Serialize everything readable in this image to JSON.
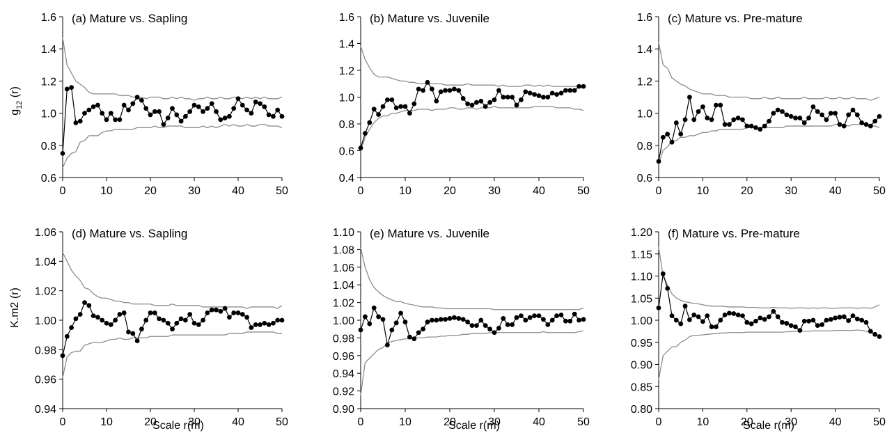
{
  "figure": {
    "ylabel_top_main": "g",
    "ylabel_top_sub": "12",
    "ylabel_top_suffix": " (r)",
    "ylabel_bottom": "K.m2 (r)",
    "xlabel_bottom": "Scale r(m)"
  },
  "chart_data": [
    {
      "type": "line",
      "title": "(a) Mature vs. Sapling",
      "ylim": [
        0.6,
        1.6
      ],
      "yticks": [
        "0.6",
        "0.8",
        "1.0",
        "1.2",
        "1.4",
        "1.6"
      ],
      "xlim": [
        0,
        50
      ],
      "xticks": [
        "0",
        "10",
        "20",
        "30",
        "40",
        "50"
      ],
      "observed": [
        0.75,
        1.15,
        1.16,
        0.94,
        0.95,
        1.0,
        1.02,
        1.04,
        1.05,
        1.0,
        0.96,
        1.0,
        0.96,
        0.96,
        1.05,
        1.02,
        1.06,
        1.1,
        1.08,
        1.03,
        0.99,
        1.01,
        1.01,
        0.93,
        0.97,
        1.03,
        0.99,
        0.95,
        0.98,
        1.01,
        1.05,
        1.04,
        1.01,
        1.03,
        1.06,
        1.01,
        0.96,
        0.97,
        0.98,
        1.03,
        1.09,
        1.05,
        1.02,
        1.0,
        1.07,
        1.06,
        1.04,
        0.99,
        0.98,
        1.02,
        0.98
      ],
      "upper": [
        1.47,
        1.3,
        1.25,
        1.2,
        1.18,
        1.16,
        1.13,
        1.12,
        1.12,
        1.12,
        1.12,
        1.12,
        1.12,
        1.11,
        1.11,
        1.11,
        1.1,
        1.1,
        1.1,
        1.09,
        1.1,
        1.1,
        1.1,
        1.09,
        1.09,
        1.1,
        1.09,
        1.1,
        1.09,
        1.09,
        1.08,
        1.09,
        1.09,
        1.1,
        1.09,
        1.09,
        1.1,
        1.09,
        1.09,
        1.1,
        1.1,
        1.09,
        1.1,
        1.09,
        1.1,
        1.09,
        1.1,
        1.09,
        1.09,
        1.09,
        1.1
      ],
      "lower": [
        0.66,
        0.72,
        0.75,
        0.76,
        0.82,
        0.83,
        0.86,
        0.86,
        0.86,
        0.88,
        0.89,
        0.89,
        0.9,
        0.9,
        0.9,
        0.9,
        0.9,
        0.91,
        0.91,
        0.91,
        0.91,
        0.92,
        0.91,
        0.91,
        0.92,
        0.92,
        0.92,
        0.92,
        0.91,
        0.91,
        0.91,
        0.91,
        0.92,
        0.91,
        0.92,
        0.91,
        0.92,
        0.93,
        0.92,
        0.93,
        0.92,
        0.92,
        0.93,
        0.92,
        0.92,
        0.93,
        0.93,
        0.92,
        0.92,
        0.92,
        0.91
      ]
    },
    {
      "type": "line",
      "title": "(b) Mature vs. Juvenile",
      "ylim": [
        0.4,
        1.6
      ],
      "yticks": [
        "0.4",
        "0.6",
        "0.8",
        "1.0",
        "1.2",
        "1.4",
        "1.6"
      ],
      "xlim": [
        0,
        50
      ],
      "xticks": [
        "0",
        "10",
        "20",
        "30",
        "40",
        "50"
      ],
      "observed": [
        0.62,
        0.73,
        0.81,
        0.91,
        0.87,
        0.93,
        0.98,
        0.98,
        0.92,
        0.93,
        0.93,
        0.88,
        0.95,
        1.06,
        1.05,
        1.11,
        1.06,
        0.97,
        1.04,
        1.05,
        1.05,
        1.06,
        1.05,
        0.99,
        0.95,
        0.94,
        0.96,
        0.97,
        0.93,
        0.96,
        0.98,
        1.05,
        1.0,
        1.0,
        1.0,
        0.94,
        0.98,
        1.04,
        1.03,
        1.02,
        1.01,
        1.0,
        1.0,
        1.03,
        1.02,
        1.03,
        1.05,
        1.05,
        1.05,
        1.08,
        1.08
      ],
      "upper": [
        1.38,
        1.28,
        1.22,
        1.17,
        1.15,
        1.15,
        1.15,
        1.14,
        1.13,
        1.12,
        1.12,
        1.11,
        1.11,
        1.1,
        1.1,
        1.1,
        1.1,
        1.1,
        1.1,
        1.09,
        1.09,
        1.09,
        1.09,
        1.09,
        1.1,
        1.09,
        1.09,
        1.09,
        1.09,
        1.09,
        1.09,
        1.08,
        1.09,
        1.08,
        1.08,
        1.08,
        1.08,
        1.09,
        1.09,
        1.08,
        1.09,
        1.08,
        1.09,
        1.08,
        1.08,
        1.08,
        1.08,
        1.08,
        1.08,
        1.09,
        1.08
      ],
      "lower": [
        0.6,
        0.7,
        0.76,
        0.81,
        0.84,
        0.86,
        0.86,
        0.88,
        0.88,
        0.89,
        0.9,
        0.9,
        0.9,
        0.91,
        0.91,
        0.91,
        0.9,
        0.91,
        0.91,
        0.91,
        0.92,
        0.92,
        0.91,
        0.91,
        0.92,
        0.92,
        0.91,
        0.92,
        0.92,
        0.92,
        0.93,
        0.92,
        0.92,
        0.92,
        0.92,
        0.92,
        0.92,
        0.92,
        0.92,
        0.93,
        0.93,
        0.93,
        0.93,
        0.93,
        0.92,
        0.92,
        0.92,
        0.92,
        0.91,
        0.91,
        0.9
      ]
    },
    {
      "type": "line",
      "title": "(c) Mature vs. Pre-mature",
      "ylim": [
        0.6,
        1.6
      ],
      "yticks": [
        "0.6",
        "0.8",
        "1.0",
        "1.2",
        "1.4",
        "1.6"
      ],
      "xlim": [
        0,
        50
      ],
      "xticks": [
        "0",
        "10",
        "20",
        "30",
        "40",
        "50"
      ],
      "observed": [
        0.7,
        0.85,
        0.87,
        0.82,
        0.94,
        0.87,
        0.96,
        1.1,
        0.96,
        1.01,
        1.04,
        0.97,
        0.96,
        1.05,
        1.05,
        0.93,
        0.93,
        0.96,
        0.97,
        0.96,
        0.92,
        0.92,
        0.91,
        0.9,
        0.92,
        0.95,
        1.0,
        1.02,
        1.01,
        0.99,
        0.98,
        0.97,
        0.97,
        0.94,
        0.97,
        1.04,
        1.01,
        0.99,
        0.96,
        1.0,
        1.0,
        0.93,
        0.92,
        0.99,
        1.02,
        0.99,
        0.94,
        0.93,
        0.92,
        0.95,
        0.98
      ],
      "upper": [
        1.44,
        1.3,
        1.28,
        1.22,
        1.2,
        1.18,
        1.17,
        1.15,
        1.14,
        1.13,
        1.12,
        1.12,
        1.12,
        1.11,
        1.11,
        1.11,
        1.1,
        1.1,
        1.1,
        1.1,
        1.1,
        1.09,
        1.09,
        1.09,
        1.1,
        1.09,
        1.09,
        1.1,
        1.09,
        1.09,
        1.09,
        1.09,
        1.09,
        1.1,
        1.09,
        1.09,
        1.09,
        1.09,
        1.1,
        1.09,
        1.09,
        1.1,
        1.09,
        1.09,
        1.1,
        1.09,
        1.09,
        1.09,
        1.08,
        1.09,
        1.1
      ],
      "lower": [
        0.68,
        0.77,
        0.79,
        0.83,
        0.83,
        0.85,
        0.85,
        0.86,
        0.86,
        0.87,
        0.88,
        0.88,
        0.89,
        0.89,
        0.9,
        0.9,
        0.9,
        0.9,
        0.9,
        0.9,
        0.91,
        0.91,
        0.91,
        0.91,
        0.91,
        0.91,
        0.91,
        0.91,
        0.91,
        0.92,
        0.92,
        0.92,
        0.92,
        0.92,
        0.92,
        0.92,
        0.92,
        0.92,
        0.92,
        0.92,
        0.93,
        0.93,
        0.93,
        0.92,
        0.93,
        0.93,
        0.93,
        0.93,
        0.92,
        0.92,
        0.91
      ]
    },
    {
      "type": "line",
      "title": "(d) Mature vs. Sapling",
      "ylim": [
        0.94,
        1.06
      ],
      "yticks": [
        "0.94",
        "0.96",
        "0.98",
        "1.00",
        "1.02",
        "1.04",
        "1.06"
      ],
      "xlim": [
        0,
        50
      ],
      "xticks": [
        "0",
        "10",
        "20",
        "30",
        "40",
        "50"
      ],
      "observed": [
        0.976,
        0.989,
        0.995,
        1.001,
        1.004,
        1.012,
        1.01,
        1.003,
        1.002,
        1.0,
        0.998,
        0.997,
        1.0,
        1.004,
        1.005,
        0.992,
        0.991,
        0.986,
        0.994,
        1.0,
        1.005,
        1.005,
        1.001,
        1.0,
        0.998,
        0.994,
        0.998,
        1.001,
        1.0,
        1.004,
        0.998,
        0.997,
        1.0,
        1.005,
        1.007,
        1.007,
        1.006,
        1.008,
        1.002,
        1.005,
        1.005,
        1.004,
        1.002,
        0.995,
        0.997,
        0.997,
        0.998,
        0.997,
        0.998,
        1.0,
        1.0
      ],
      "upper": [
        1.046,
        1.04,
        1.034,
        1.03,
        1.027,
        1.022,
        1.021,
        1.018,
        1.016,
        1.015,
        1.015,
        1.014,
        1.013,
        1.013,
        1.012,
        1.012,
        1.011,
        1.011,
        1.011,
        1.011,
        1.011,
        1.01,
        1.01,
        1.01,
        1.01,
        1.011,
        1.01,
        1.01,
        1.01,
        1.01,
        1.01,
        1.01,
        1.009,
        1.009,
        1.009,
        1.009,
        1.009,
        1.009,
        1.009,
        1.009,
        1.009,
        1.009,
        1.008,
        1.009,
        1.009,
        1.009,
        1.009,
        1.009,
        1.009,
        1.008,
        1.01
      ],
      "lower": [
        0.961,
        0.975,
        0.978,
        0.979,
        0.979,
        0.983,
        0.984,
        0.985,
        0.985,
        0.985,
        0.986,
        0.987,
        0.987,
        0.988,
        0.987,
        0.987,
        0.988,
        0.988,
        0.988,
        0.988,
        0.989,
        0.989,
        0.989,
        0.989,
        0.989,
        0.99,
        0.99,
        0.99,
        0.99,
        0.99,
        0.99,
        0.99,
        0.99,
        0.99,
        0.99,
        0.99,
        0.99,
        0.99,
        0.991,
        0.991,
        0.991,
        0.991,
        0.992,
        0.992,
        0.992,
        0.992,
        0.992,
        0.992,
        0.992,
        0.991,
        0.991
      ]
    },
    {
      "type": "line",
      "title": "(e) Mature vs. Juvenile",
      "ylim": [
        0.9,
        1.1
      ],
      "yticks": [
        "0.90",
        "0.92",
        "0.94",
        "0.96",
        "0.98",
        "1.00",
        "1.02",
        "1.04",
        "1.06",
        "1.08",
        "1.10"
      ],
      "xlim": [
        0,
        50
      ],
      "xticks": [
        "0",
        "10",
        "20",
        "30",
        "40",
        "50"
      ],
      "observed": [
        0.989,
        1.004,
        0.996,
        1.014,
        1.004,
        1.001,
        0.972,
        0.989,
        0.997,
        1.008,
        0.998,
        0.981,
        0.979,
        0.986,
        0.99,
        0.998,
        1.0,
        1.0,
        1.001,
        1.001,
        1.002,
        1.003,
        1.002,
        1.001,
        0.998,
        0.994,
        0.994,
        1.0,
        0.994,
        0.99,
        0.986,
        0.991,
        1.002,
        0.995,
        0.995,
        1.003,
        1.005,
        1.0,
        1.003,
        1.005,
        1.005,
        1.001,
        0.995,
        1.0,
        1.005,
        1.006,
        0.999,
        0.999,
        1.007,
        1.0,
        1.001
      ],
      "upper": [
        1.082,
        1.06,
        1.046,
        1.037,
        1.032,
        1.028,
        1.025,
        1.023,
        1.021,
        1.021,
        1.019,
        1.018,
        1.017,
        1.016,
        1.015,
        1.015,
        1.015,
        1.014,
        1.014,
        1.013,
        1.013,
        1.013,
        1.013,
        1.013,
        1.013,
        1.013,
        1.013,
        1.013,
        1.013,
        1.013,
        1.012,
        1.012,
        1.012,
        1.012,
        1.012,
        1.012,
        1.012,
        1.012,
        1.012,
        1.012,
        1.012,
        1.012,
        1.012,
        1.012,
        1.012,
        1.012,
        1.012,
        1.012,
        1.012,
        1.012,
        1.014
      ],
      "lower": [
        0.915,
        0.952,
        0.957,
        0.962,
        0.967,
        0.969,
        0.974,
        0.976,
        0.977,
        0.978,
        0.979,
        0.979,
        0.98,
        0.98,
        0.98,
        0.981,
        0.981,
        0.981,
        0.982,
        0.982,
        0.983,
        0.983,
        0.983,
        0.984,
        0.984,
        0.985,
        0.985,
        0.985,
        0.985,
        0.986,
        0.986,
        0.986,
        0.986,
        0.986,
        0.986,
        0.986,
        0.986,
        0.986,
        0.986,
        0.986,
        0.986,
        0.987,
        0.986,
        0.986,
        0.986,
        0.986,
        0.986,
        0.986,
        0.986,
        0.987,
        0.988
      ]
    },
    {
      "type": "line",
      "title": "(f) Mature vs. Pre-mature",
      "ylim": [
        0.8,
        1.2
      ],
      "yticks": [
        "0.80",
        "0.85",
        "0.90",
        "0.95",
        "1.00",
        "1.05",
        "1.10",
        "1.15",
        "1.20"
      ],
      "xlim": [
        0,
        50
      ],
      "xticks": [
        "0",
        "10",
        "20",
        "30",
        "40",
        "50"
      ],
      "observed": [
        1.028,
        1.105,
        1.072,
        1.01,
        1.0,
        0.992,
        1.032,
        1.001,
        1.012,
        1.008,
        0.997,
        1.01,
        0.985,
        0.985,
        1.0,
        1.012,
        1.016,
        1.015,
        1.012,
        1.01,
        0.995,
        0.992,
        0.998,
        1.005,
        1.002,
        1.008,
        1.02,
        1.008,
        0.995,
        0.993,
        0.988,
        0.985,
        0.977,
        0.998,
        0.998,
        1.0,
        0.988,
        0.99,
        1.0,
        1.002,
        1.005,
        1.007,
        1.008,
        0.999,
        1.01,
        1.003,
        1.0,
        0.995,
        0.975,
        0.968,
        0.963
      ],
      "upper": [
        1.165,
        1.1,
        1.08,
        1.06,
        1.05,
        1.045,
        1.042,
        1.04,
        1.038,
        1.037,
        1.035,
        1.033,
        1.032,
        1.032,
        1.032,
        1.031,
        1.03,
        1.03,
        1.03,
        1.03,
        1.029,
        1.029,
        1.029,
        1.028,
        1.028,
        1.028,
        1.029,
        1.028,
        1.028,
        1.028,
        1.027,
        1.028,
        1.028,
        1.028,
        1.027,
        1.028,
        1.027,
        1.028,
        1.028,
        1.027,
        1.027,
        1.028,
        1.028,
        1.028,
        1.028,
        1.027,
        1.028,
        1.028,
        1.027,
        1.03,
        1.035
      ],
      "lower": [
        0.865,
        0.92,
        0.93,
        0.94,
        0.94,
        0.95,
        0.955,
        0.963,
        0.966,
        0.966,
        0.967,
        0.968,
        0.969,
        0.97,
        0.971,
        0.971,
        0.972,
        0.972,
        0.972,
        0.972,
        0.973,
        0.973,
        0.973,
        0.973,
        0.973,
        0.973,
        0.973,
        0.973,
        0.973,
        0.974,
        0.974,
        0.975,
        0.975,
        0.975,
        0.975,
        0.976,
        0.976,
        0.976,
        0.976,
        0.976,
        0.977,
        0.977,
        0.977,
        0.977,
        0.977,
        0.978,
        0.977,
        0.975,
        0.972,
        0.97,
        0.963
      ]
    }
  ]
}
